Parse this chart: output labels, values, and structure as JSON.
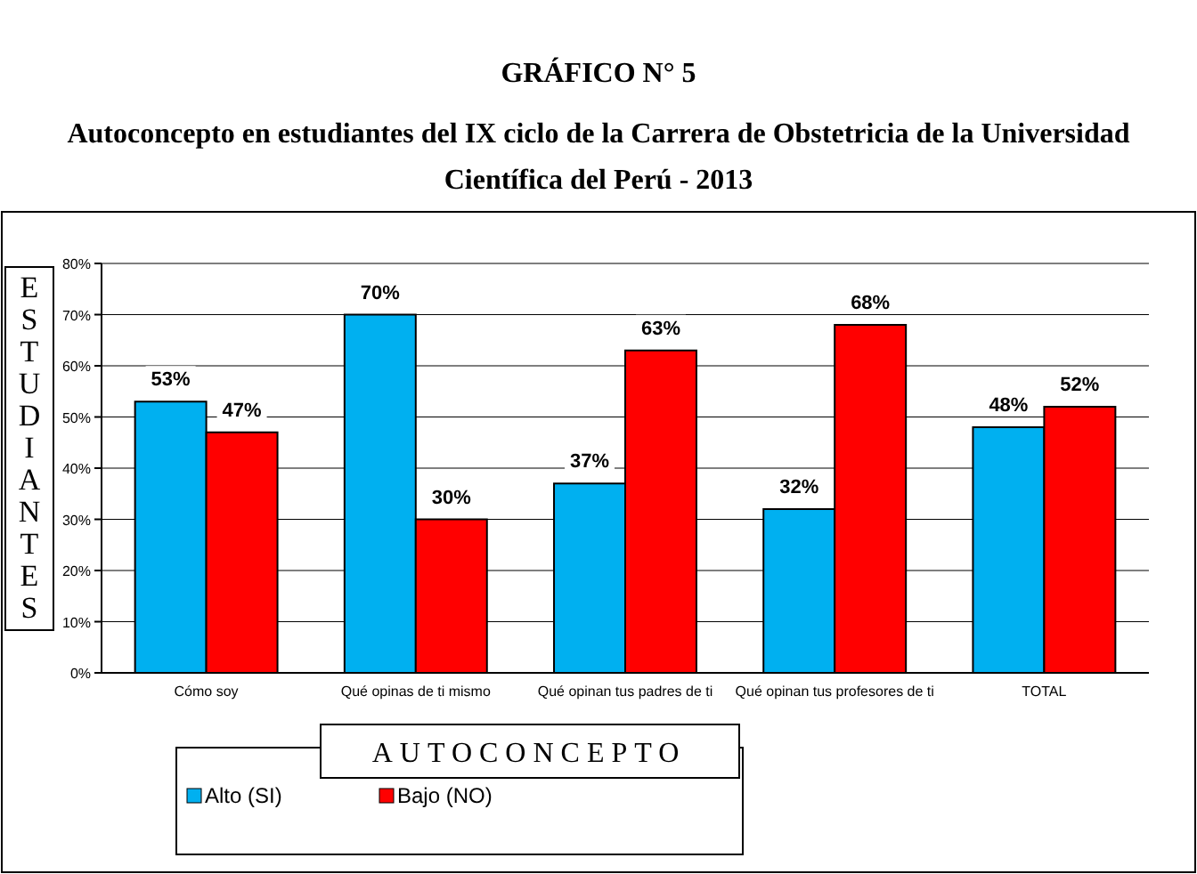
{
  "chart_data": {
    "type": "bar",
    "title": "GRÁFICO N° 5",
    "subtitle": "Autoconcepto en estudiantes del IX ciclo de la Carrera de Obstetricia de la Universidad Científica del Perú - 2013",
    "xlabel": "AUTOCONCEPTO",
    "ylabel": "ESTUDIANTES",
    "categories": [
      "Cómo soy",
      "Qué opinas de ti mismo",
      "Qué opinan tus padres de ti",
      "Qué opinan tus profesores de ti",
      "TOTAL"
    ],
    "series": [
      {
        "name": "Alto (SI)",
        "color": "#00b0f0",
        "values": [
          53,
          70,
          37,
          32,
          48
        ],
        "value_labels": [
          "53%",
          "70%",
          "37%",
          "32%",
          "48%"
        ]
      },
      {
        "name": "Bajo (NO)",
        "color": "#ff0000",
        "values": [
          47,
          30,
          63,
          68,
          52
        ],
        "value_labels": [
          "47%",
          "30%",
          "63%",
          "68%",
          "52%"
        ]
      }
    ],
    "ylim": [
      0,
      80
    ],
    "yticks": [
      {
        "value": 0,
        "label": "0%"
      },
      {
        "value": 10,
        "label": "10%"
      },
      {
        "value": 20,
        "label": "20%"
      },
      {
        "value": 30,
        "label": "30%"
      },
      {
        "value": 40,
        "label": "40%"
      },
      {
        "value": 50,
        "label": "50%"
      },
      {
        "value": 60,
        "label": "60%"
      },
      {
        "value": 70,
        "label": "70%"
      },
      {
        "value": 80,
        "label": "80%"
      }
    ],
    "grid": "y",
    "legend": "bottom"
  }
}
